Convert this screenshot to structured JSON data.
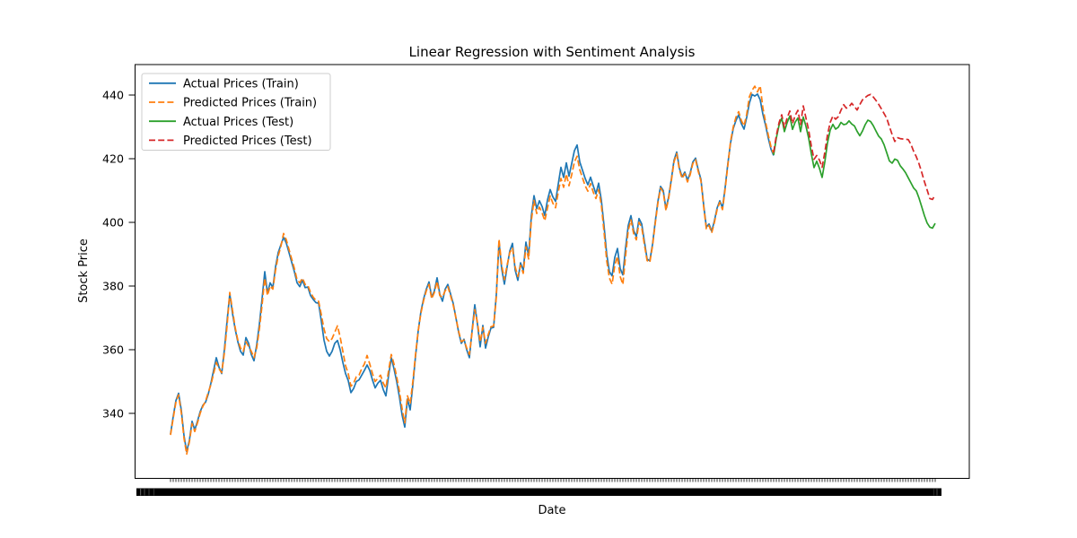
{
  "figure": {
    "title": "Linear Regression with Sentiment Analysis",
    "xlabel": "Date",
    "ylabel": "Stock Price",
    "background": "#ffffff"
  },
  "axes": {
    "y_tick_labels": [
      "340",
      "360",
      "380",
      "400",
      "420",
      "440"
    ],
    "y_ticks": [
      340,
      360,
      380,
      400,
      420,
      440
    ],
    "ylim": [
      319.6,
      449.6
    ],
    "x_tick_note": "hundreds of per-day date tick labels overlap into a solid black band; individual dates are illegible",
    "x_tick_count": 285
  },
  "legend": {
    "position": "upper-left",
    "border_color": "#cccccc"
  },
  "chart_data": {
    "type": "line",
    "title": "Linear Regression with Sentiment Analysis",
    "xlabel": "Date",
    "ylabel": "Stock Price",
    "ylim": [
      319.6,
      449.6
    ],
    "y_ticks": [
      340,
      360,
      380,
      400,
      420,
      440
    ],
    "grid": false,
    "legend_position": "upper left",
    "x_axis": {
      "type": "date-index",
      "total_points": 285,
      "tick_labels_legible": false
    },
    "series": [
      {
        "name": "Actual Prices (Train)",
        "color": "#1f77b4",
        "style": "solid",
        "x_index_start": 0,
        "values": [
          333.5,
          339,
          344,
          346.3,
          341,
          333,
          328,
          331.5,
          337.5,
          334.8,
          337.5,
          340.5,
          342.5,
          343.5,
          346,
          349.5,
          353.5,
          357.5,
          354.5,
          352.5,
          360,
          369,
          377.5,
          371.5,
          366.5,
          362.5,
          359.5,
          358.3,
          363.8,
          362,
          358.5,
          356.5,
          361.5,
          368,
          376,
          384.5,
          377.8,
          381,
          379.5,
          386,
          390.5,
          393,
          395.3,
          393.5,
          390.5,
          387.5,
          384.5,
          381,
          379.8,
          381.9,
          379.5,
          379.7,
          377,
          375.8,
          374.8,
          374.6,
          369,
          363,
          359.5,
          358,
          359.5,
          362,
          362.9,
          360,
          356,
          352.5,
          350.3,
          346.5,
          347.8,
          350,
          350.5,
          352,
          353.5,
          355.2,
          353.5,
          350.5,
          348,
          349.5,
          350.4,
          347.5,
          345.5,
          352,
          357.5,
          354,
          350,
          345.2,
          339.5,
          335.7,
          344.5,
          341.1,
          349,
          358,
          366,
          372,
          376,
          379,
          381.3,
          376.5,
          378.5,
          382.6,
          377.5,
          375.2,
          379,
          380.5,
          377.5,
          374.5,
          370,
          365.5,
          362,
          363.3,
          360,
          357.5,
          366,
          374.1,
          368,
          360.9,
          367.6,
          360.5,
          364,
          366.8,
          367,
          377.3,
          393.9,
          385.4,
          380.6,
          386,
          391,
          393.4,
          385,
          381.8,
          387.3,
          384.9,
          393.8,
          389.5,
          402,
          408.4,
          404.3,
          406.8,
          405,
          402.2,
          407,
          410.3,
          408,
          406.6,
          412,
          417.3,
          414.1,
          418.7,
          414.5,
          418.5,
          422.5,
          424.3,
          419,
          416.4,
          413.8,
          411.8,
          414.2,
          411.5,
          409,
          412.3,
          407,
          399,
          390,
          384.5,
          383.2,
          389,
          391.8,
          385.5,
          383.5,
          392,
          399,
          402.1,
          397.5,
          395.5,
          401.2,
          399.5,
          394,
          388.5,
          387.9,
          393,
          400,
          406.5,
          411.3,
          410,
          404.2,
          408,
          413.5,
          419.5,
          422.1,
          417,
          414.3,
          415.8,
          413.2,
          415.5,
          419,
          420.2,
          416.5,
          413.5,
          405.5,
          398.5,
          399.5,
          397.2,
          400.5,
          404.5,
          406.8,
          404.5,
          411,
          418.5,
          425,
          429.5,
          432,
          433.8,
          431,
          429.3,
          433,
          437.5,
          440.2,
          439.7,
          440.3,
          438.5,
          434,
          430.5,
          426.5,
          423,
          421
        ]
      },
      {
        "name": "Predicted Prices (Train)",
        "color": "#ff7f0e",
        "style": "dashed",
        "x_index_start": 0,
        "values": [
          333.2,
          338.5,
          343.5,
          345.8,
          340.2,
          332.2,
          327.2,
          331,
          336.8,
          334.3,
          337,
          340,
          342.2,
          343.8,
          346.5,
          349,
          352.5,
          356,
          354,
          352.8,
          359,
          367.5,
          378,
          372.5,
          367,
          363,
          360.5,
          359.5,
          362.5,
          361,
          359.5,
          357.5,
          360.5,
          366.5,
          374,
          382.5,
          377,
          380,
          379,
          385,
          389.5,
          392.5,
          396.5,
          394.5,
          391.5,
          388.5,
          385.5,
          382,
          381,
          382.5,
          380.5,
          380.2,
          378,
          376.5,
          375.5,
          375.2,
          371,
          366.5,
          363.5,
          362.5,
          363.5,
          365.5,
          367.5,
          364,
          359.5,
          355,
          352.5,
          348.5,
          349.5,
          351.5,
          352,
          354,
          355.5,
          358.2,
          355.5,
          352.5,
          350,
          351,
          352,
          349.5,
          348,
          353.5,
          358.5,
          355.5,
          351.5,
          347,
          341.5,
          337,
          345.5,
          343,
          350,
          358.5,
          366,
          371.5,
          375.5,
          378.5,
          380.5,
          376,
          378,
          381.5,
          377,
          376.5,
          378.5,
          379.8,
          377,
          374,
          370,
          365.8,
          362.5,
          363,
          360.5,
          358.5,
          365.5,
          372.6,
          368.5,
          362.4,
          367,
          362,
          364.8,
          367.2,
          367.5,
          376.5,
          394.7,
          386.5,
          382,
          386.5,
          390.5,
          392,
          386,
          383,
          386.5,
          384,
          392.3,
          388.5,
          400.5,
          406.9,
          402.8,
          404.8,
          403,
          400.5,
          404.5,
          408.3,
          406,
          404.6,
          409.5,
          413.8,
          411,
          415.2,
          411.5,
          415,
          419,
          420.8,
          416.5,
          414,
          411.5,
          409.8,
          412.2,
          409.5,
          407.5,
          410.3,
          405.5,
          397,
          388,
          382.5,
          380.6,
          386.5,
          389.3,
          383,
          380.5,
          389.5,
          397.5,
          400.8,
          396.5,
          394.5,
          400,
          398.5,
          393,
          388,
          387.4,
          392.5,
          399.5,
          406,
          410.8,
          409.5,
          403.7,
          407.5,
          413,
          419,
          421.6,
          416.5,
          413.8,
          415.3,
          412.7,
          415,
          418.5,
          419.7,
          416,
          413,
          405,
          398,
          399,
          396.7,
          400,
          404,
          406.3,
          404,
          410.5,
          418,
          425.5,
          430,
          433,
          434.8,
          432,
          430.3,
          434,
          439.5,
          441.5,
          442.8,
          441,
          442.9,
          436,
          431.5,
          427.5,
          423.8,
          421.5
        ]
      },
      {
        "name": "Actual Prices (Test)",
        "color": "#2ca02c",
        "style": "solid",
        "x_index_start": 224,
        "values": [
          421.2,
          426.5,
          430.5,
          432.8,
          428.5,
          431.3,
          433.4,
          429.2,
          431.5,
          432.8,
          428.5,
          433.1,
          430.2,
          426.5,
          421.5,
          417.2,
          419.2,
          417,
          414.1,
          419,
          425,
          429,
          430.8,
          429.3,
          429.9,
          431.4,
          430.7,
          430.9,
          431.9,
          430.9,
          430.3,
          428.6,
          427.2,
          428.7,
          430.7,
          432.1,
          431.7,
          430.4,
          428.7,
          427.1,
          426.2,
          424.4,
          421.9,
          419.3,
          418.6,
          419.9,
          419.5,
          417.8,
          416.8,
          415.6,
          414,
          412.4,
          410.8,
          409.9,
          407.6,
          404.9,
          402.1,
          399.8,
          398.5,
          398.2,
          399.7
        ]
      },
      {
        "name": "Predicted Prices (Test)",
        "color": "#d62728",
        "style": "dashed",
        "x_index_start": 224,
        "values": [
          422,
          427.3,
          431.3,
          433.8,
          429.8,
          432.8,
          435,
          431,
          433.6,
          435.2,
          430.8,
          436.6,
          432.8,
          429,
          424,
          419.8,
          421,
          419.6,
          417.3,
          422,
          427.5,
          431.4,
          433.4,
          432.4,
          433.2,
          435.2,
          437,
          435.9,
          436.3,
          437.4,
          436.4,
          435.3,
          437,
          438.5,
          439.2,
          439.9,
          440.2,
          439.4,
          438.3,
          437.1,
          435.7,
          434.2,
          432.7,
          430.1,
          427.6,
          425.4,
          426.6,
          426.3,
          426.2,
          426.1,
          426,
          424.5,
          422.3,
          420.6,
          418.4,
          415.7,
          412.8,
          410.2,
          407.5,
          407.2,
          408.6
        ]
      }
    ]
  }
}
